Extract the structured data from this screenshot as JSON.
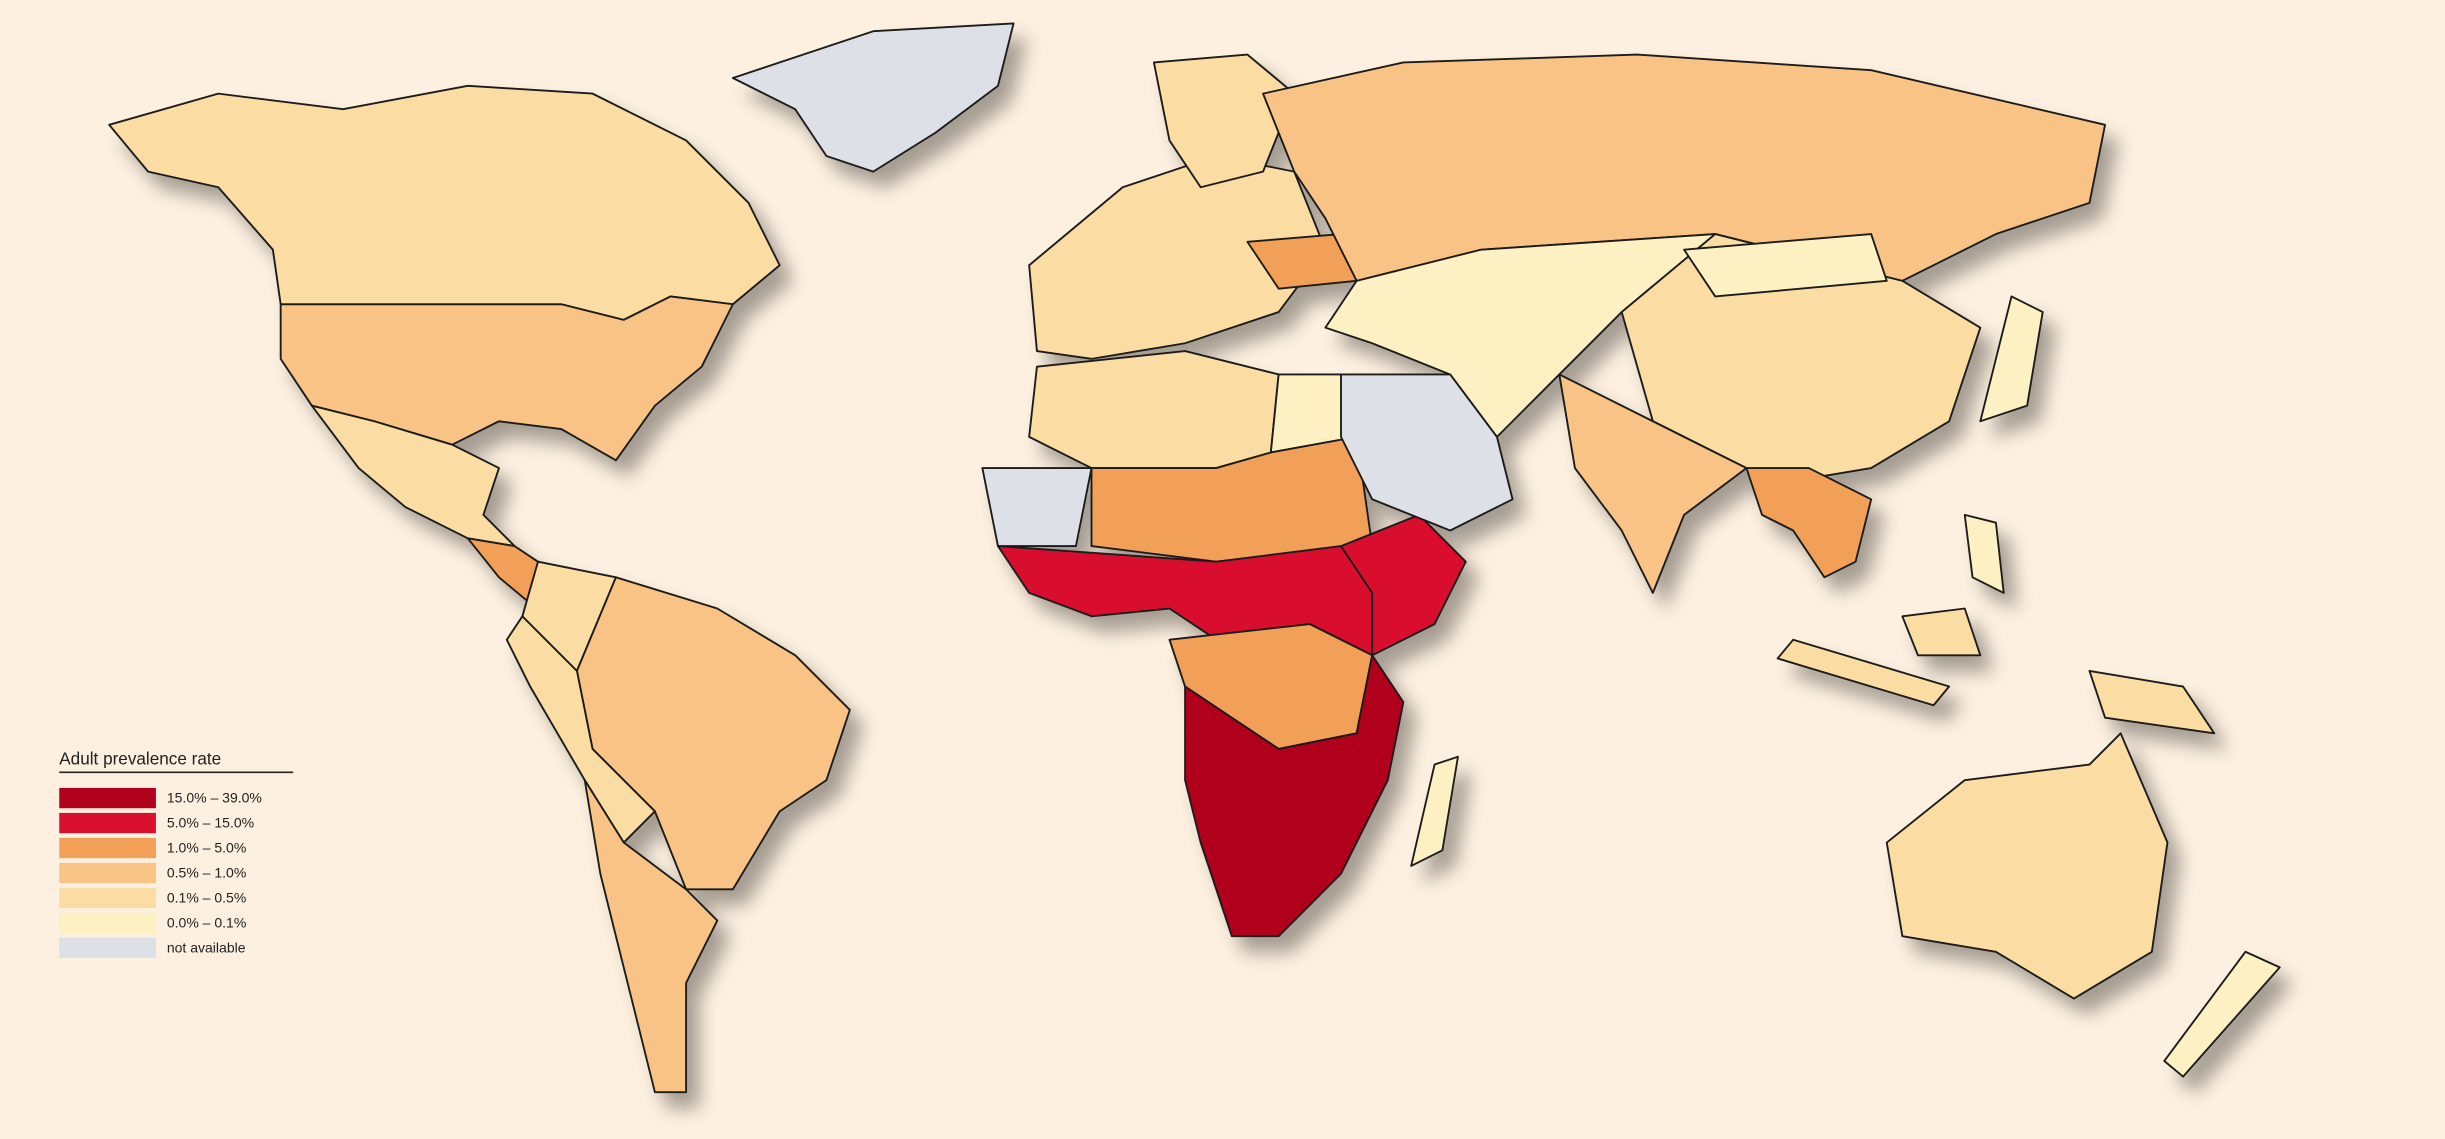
{
  "legend": {
    "title": "Adult prevalence rate",
    "items": [
      {
        "label": "15.0% – 39.0%",
        "color": "#b0001c"
      },
      {
        "label": "5.0% – 15.0%",
        "color": "#d9112f"
      },
      {
        "label": "1.0% – 5.0%",
        "color": "#f2a058"
      },
      {
        "label": "0.5% – 1.0%",
        "color": "#f8c384"
      },
      {
        "label": "0.1% – 0.5%",
        "color": "#fbdca2"
      },
      {
        "label": "0.0% – 0.1%",
        "color": "#fdf1c4"
      },
      {
        "label": "not available",
        "color": "#dde0e6"
      }
    ]
  }
}
